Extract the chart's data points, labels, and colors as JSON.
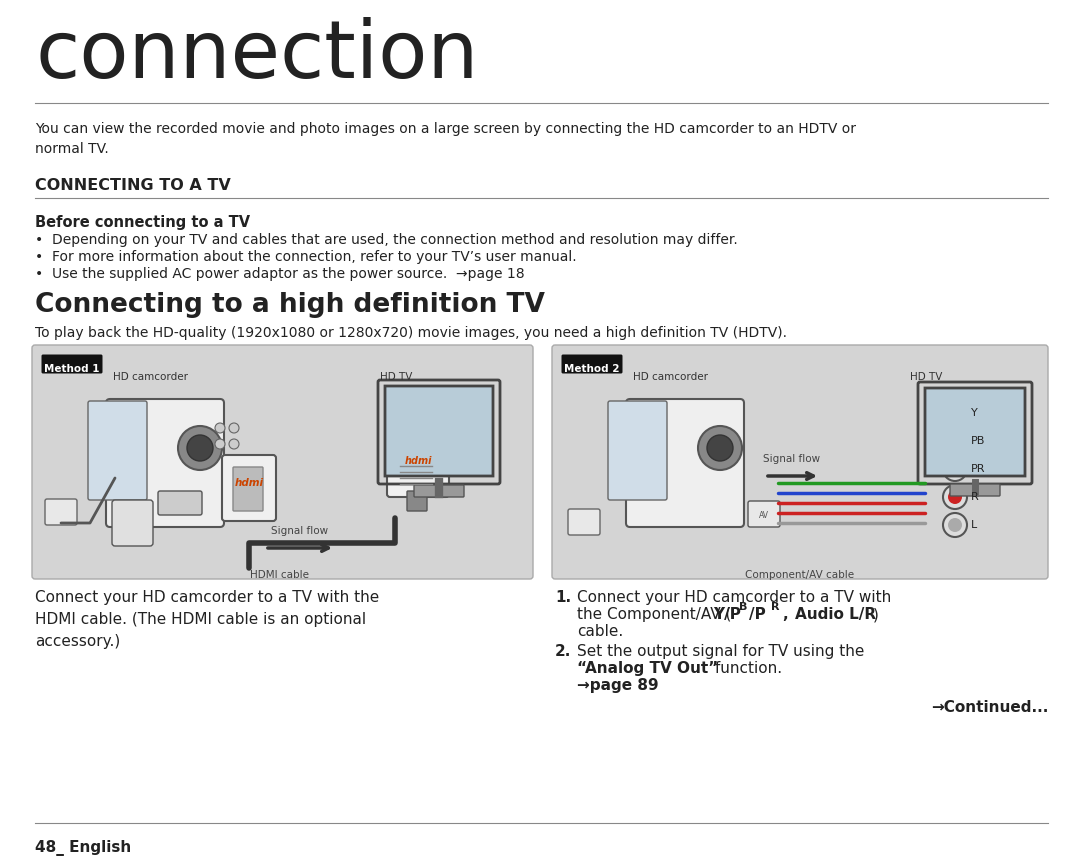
{
  "bg_color": "#ffffff",
  "title": "connection",
  "title_fontsize": 58,
  "title_color": "#222222",
  "body_text": "You can view the recorded movie and photo images on a large screen by connecting the HD camcorder to an HDTV or\nnormal TV.",
  "body_fontsize": 10,
  "section_title": "CONNECTING TO A TV",
  "section_title_fontsize": 11.5,
  "subsection_title": "Connecting to a high definition TV",
  "subsection_title_fontsize": 19,
  "before_connecting_title": "Before connecting to a TV",
  "bullets": [
    "Depending on your TV and cables that are used, the connection method and resolution may differ.",
    "For more information about the connection, refer to your TV’s user manual.",
    "Use the supplied AC power adaptor as the power source.  →page 18"
  ],
  "hdtv_desc": "To play back the HD-quality (1920x1080 or 1280x720) movie images, you need a high definition TV (HDTV).",
  "left_box_label": "Method 1",
  "left_box_sublabel1": "HD camcorder",
  "left_box_sublabel2": "HD TV",
  "left_signal_label": "Signal flow",
  "left_cable_label": "HDMI cable",
  "right_box_label": "Method 2",
  "right_box_sublabel1": "HD camcorder",
  "right_box_sublabel2": "HD TV",
  "right_signal_label": "Signal flow",
  "right_cable_label": "Component/AV cable",
  "left_caption": "Connect your HD camcorder to a TV with the\nHDMI cable. (The HDMI cable is an optional\naccessory.)",
  "continued": "→Continued...",
  "page_label": "48_ English",
  "box_bg": "#d4d4d4",
  "box_border": "#aaaaaa",
  "text_color": "#222222"
}
